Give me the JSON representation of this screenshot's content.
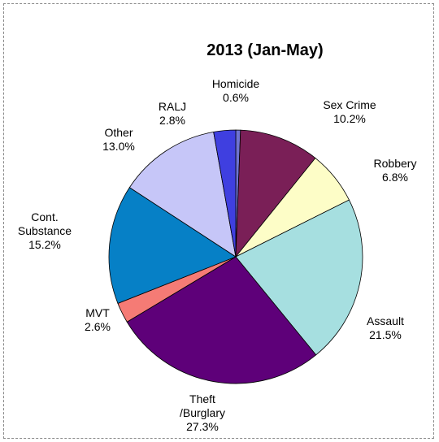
{
  "chart_data": {
    "type": "pie",
    "title": "2013 (Jan-May)",
    "start_angle_deg": 0,
    "direction": "clockwise",
    "slices": [
      {
        "name": "Homicide",
        "label_lines": [
          "Homicide",
          "0.6%"
        ],
        "value": 0.6,
        "value_label": "0.6%",
        "color": "#6f73d2"
      },
      {
        "name": "Sex Crime",
        "label_lines": [
          "Sex Crime",
          "10.2%"
        ],
        "value": 10.2,
        "value_label": "10.2%",
        "color": "#7a1f57"
      },
      {
        "name": "Robbery",
        "label_lines": [
          "Robbery",
          "6.8%"
        ],
        "value": 6.8,
        "value_label": "6.8%",
        "color": "#fdfdc7"
      },
      {
        "name": "Assault",
        "label_lines": [
          "Assault",
          "21.5%"
        ],
        "value": 21.5,
        "value_label": "21.5%",
        "color": "#a6dfe0"
      },
      {
        "name": "Theft /Burglary",
        "label_lines": [
          "Theft",
          "/Burglary",
          "27.3%"
        ],
        "value": 27.3,
        "value_label": "27.3%",
        "color": "#5e0079"
      },
      {
        "name": "MVT",
        "label_lines": [
          "MVT",
          "2.6%"
        ],
        "value": 2.6,
        "value_label": "2.6%",
        "color": "#f57b75"
      },
      {
        "name": "Cont. Substance",
        "label_lines": [
          "Cont.",
          "Substance",
          "15.2%"
        ],
        "value": 15.2,
        "value_label": "15.2%",
        "color": "#0680c6"
      },
      {
        "name": "Other",
        "label_lines": [
          "Other",
          "13.0%"
        ],
        "value": 13.0,
        "value_label": "13.0%",
        "color": "#c6c6f8"
      },
      {
        "name": "RALJ",
        "label_lines": [
          "RALJ",
          "2.8%"
        ],
        "value": 2.8,
        "value_label": "2.8%",
        "color": "#3f3fe0"
      }
    ],
    "legend": "none"
  }
}
